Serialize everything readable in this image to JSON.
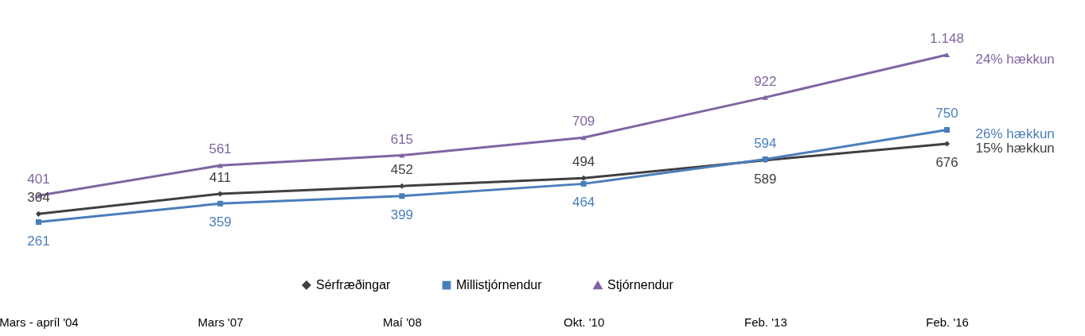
{
  "chart_data": {
    "type": "line",
    "categories": [
      "Mars - apríl '04",
      "Mars '07",
      "Maí '08",
      "Okt. '10",
      "Feb. '13",
      "Feb. '16"
    ],
    "series": [
      {
        "name": "Sérfræðingar",
        "color": "#404040",
        "marker": "diamond",
        "values": [
          304,
          411,
          452,
          494,
          589,
          676
        ],
        "value_labels": [
          "304",
          "411",
          "452",
          "494",
          "589",
          "676"
        ]
      },
      {
        "name": "Millistjórnendur",
        "color": "#4a7ebb",
        "marker": "square",
        "values": [
          261,
          359,
          399,
          464,
          594,
          750
        ],
        "value_labels": [
          "261",
          "359",
          "399",
          "464",
          "594",
          "750"
        ]
      },
      {
        "name": "Stjórnendur",
        "color": "#8064a2",
        "marker": "triangle",
        "values": [
          401,
          561,
          615,
          709,
          922,
          1148
        ],
        "value_labels": [
          "401",
          "561",
          "615",
          "709",
          "922",
          "1.148"
        ]
      }
    ],
    "annotations": [
      {
        "text": "24% hækkun",
        "x": "Feb. '16",
        "y": 1148
      },
      {
        "text": "26% hækkun",
        "x": "Feb. '16",
        "y": 750
      },
      {
        "text": "15% hækkun",
        "x": "Feb. '16",
        "y": 676
      }
    ],
    "legend": "bottom",
    "grid": false
  }
}
